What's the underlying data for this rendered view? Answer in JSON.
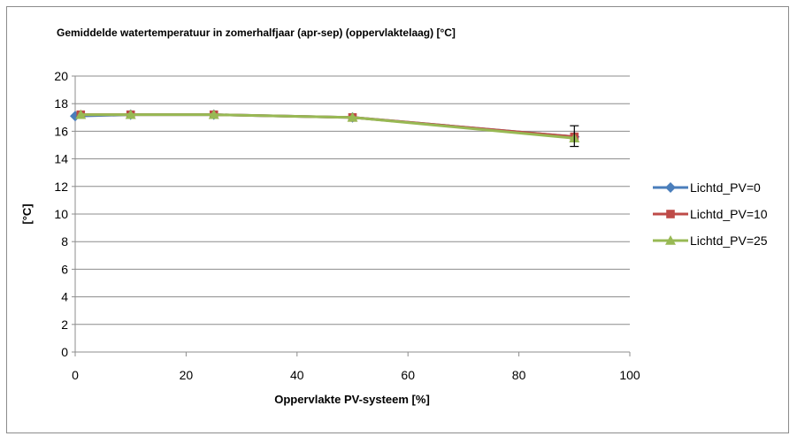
{
  "chart_data": {
    "type": "line",
    "title": "Gemiddelde watertemperatuur  in zomerhalfjaar (apr-sep) (oppervlaktelaag) [°C]",
    "xlabel": "Oppervlakte PV-systeem [%]",
    "ylabel": "[°C]",
    "xlim": [
      0,
      100
    ],
    "ylim": [
      0,
      20
    ],
    "xticks": [
      0,
      20,
      40,
      60,
      80,
      100
    ],
    "yticks": [
      0,
      2,
      4,
      6,
      8,
      10,
      12,
      14,
      16,
      18,
      20
    ],
    "grid": "horizontal",
    "legend_position": "right",
    "x": [
      0,
      10,
      25,
      50,
      90
    ],
    "series": [
      {
        "name": "Lichtd_PV=0",
        "color": "#4a7ebb",
        "marker": "diamond",
        "x": [
          0,
          10,
          25,
          50,
          90
        ],
        "values": [
          17.1,
          17.2,
          17.2,
          17.0,
          15.6
        ]
      },
      {
        "name": "Lichtd_PV=10",
        "color": "#be4b48",
        "marker": "square",
        "x": [
          1,
          10,
          25,
          50,
          90
        ],
        "values": [
          17.2,
          17.2,
          17.2,
          17.0,
          15.6
        ]
      },
      {
        "name": "Lichtd_PV=25",
        "color": "#98b954",
        "marker": "triangle",
        "x": [
          1,
          10,
          25,
          50,
          90
        ],
        "values": [
          17.2,
          17.2,
          17.2,
          17.0,
          15.5
        ]
      }
    ],
    "error_bars": [
      {
        "x": 90,
        "low": 14.9,
        "high": 16.4
      }
    ]
  }
}
